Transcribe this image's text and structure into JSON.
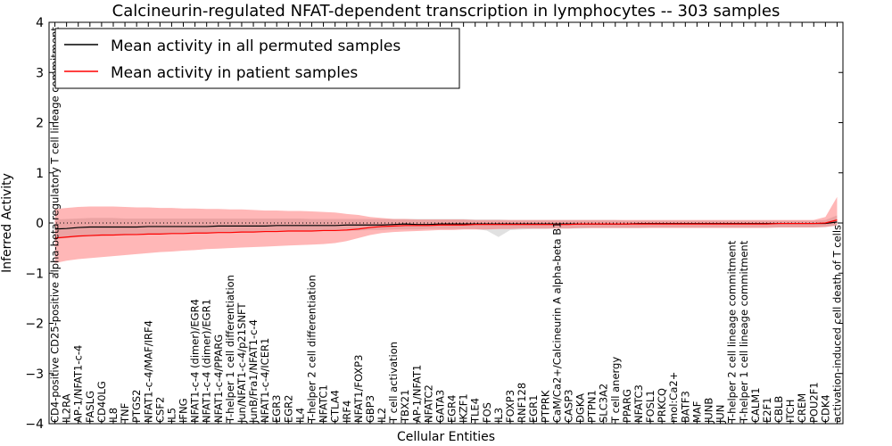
{
  "chart_data": {
    "type": "line",
    "title": "Calcineurin-regulated NFAT-dependent transcription in lymphocytes -- 303 samples",
    "xlabel": "Cellular Entities",
    "ylabel": "Inferred Activity",
    "ylim": [
      -4,
      4
    ],
    "yticks": [
      -4,
      -3,
      -2,
      -1,
      0,
      1,
      2,
      3,
      4
    ],
    "ytick_labels": [
      "−4",
      "−3",
      "−2",
      "−1",
      "0",
      "1",
      "2",
      "3",
      "4"
    ],
    "legend_position": "top-left",
    "categories": [
      "CD4-positive CD25-positive alpha-beta regulatory T cell lineage commitment",
      "IL2RA",
      "AP-1/NFAT1-c-4",
      "FASLG",
      "CD40LG",
      "IL8",
      "TNF",
      "PTGS2",
      "NFAT1-c-4/MAF/IRF4",
      "CSF2",
      "IL5",
      "IFNG",
      "NFAT1-c-4 (dimer)/EGR4",
      "NFAT1-c-4 (dimer)/EGR1",
      "NFAT1-c-4/PPARG",
      "T-helper 1 cell differentiation",
      "Jun/NFAT1-c-4/p21SNFT",
      "JunB/Fra1/NFAT1-c-4",
      "NFAT1-c-4/ICER1",
      "EGR3",
      "EGR2",
      "IL4",
      "T-helper 2 cell differentiation",
      "NFATC1",
      "CTLA4",
      "IRF4",
      "NFAT1/FOXP3",
      "GBP3",
      "IL2",
      "T cell activation",
      "TBX21",
      "AP-1/NFAT1",
      "NFATC2",
      "GATA3",
      "EGR4",
      "IKZF1",
      "TLE4",
      "FOS",
      "IL3",
      "FOXP3",
      "RNF128",
      "EGR1",
      "PTPRK",
      "CaM/Ca2+/Calcineurin A alpha-beta B1",
      "CASP3",
      "DGKA",
      "PTPN1",
      "SLC3A2",
      "T cell anergy",
      "PPARG",
      "NFATC3",
      "FOSL1",
      "PRKCQ",
      "mol:Ca2+",
      "BATF3",
      "MAF",
      "JUNB",
      "JUN",
      "T-helper 2 cell lineage commitment",
      "T-helper 1 cell lineage commitment",
      "CALM1",
      "E2F1",
      "CBLB",
      "ITCH",
      "CREM",
      "POU2F1",
      "CDK4",
      "activation-induced cell death of T cells"
    ],
    "series": [
      {
        "name": "Mean activity in all permuted samples",
        "color": "#000000",
        "values": [
          -0.12,
          -0.11,
          -0.09,
          -0.08,
          -0.08,
          -0.08,
          -0.08,
          -0.08,
          -0.07,
          -0.07,
          -0.07,
          -0.07,
          -0.07,
          -0.07,
          -0.06,
          -0.06,
          -0.06,
          -0.06,
          -0.06,
          -0.05,
          -0.05,
          -0.05,
          -0.05,
          -0.05,
          -0.05,
          -0.04,
          -0.04,
          -0.04,
          -0.04,
          -0.03,
          -0.02,
          -0.03,
          -0.03,
          -0.02,
          -0.02,
          -0.02,
          -0.02,
          -0.02,
          -0.02,
          -0.02,
          -0.02,
          -0.02,
          -0.02,
          -0.02,
          -0.02,
          -0.02,
          -0.02,
          -0.02,
          -0.02,
          -0.02,
          -0.01,
          -0.01,
          -0.01,
          -0.01,
          -0.01,
          -0.01,
          -0.01,
          -0.01,
          -0.01,
          -0.01,
          -0.01,
          -0.01,
          -0.01,
          -0.01,
          -0.01,
          -0.01,
          -0.01,
          0.02
        ],
        "band_upper": [
          0.07,
          0.08,
          0.09,
          0.1,
          0.1,
          0.1,
          0.09,
          0.09,
          0.09,
          0.09,
          0.09,
          0.09,
          0.09,
          0.09,
          0.09,
          0.09,
          0.09,
          0.09,
          0.09,
          0.09,
          0.09,
          0.09,
          0.08,
          0.08,
          0.08,
          0.08,
          0.08,
          0.08,
          0.08,
          0.08,
          0.08,
          0.08,
          0.08,
          0.08,
          0.08,
          0.08,
          0.07,
          0.07,
          0.07,
          0.06,
          0.06,
          0.06,
          0.06,
          0.06,
          0.06,
          0.06,
          0.06,
          0.06,
          0.06,
          0.05,
          0.05,
          0.05,
          0.05,
          0.05,
          0.05,
          0.05,
          0.05,
          0.05,
          0.05,
          0.05,
          0.05,
          0.05,
          0.05,
          0.05,
          0.05,
          0.05,
          0.06,
          0.15
        ],
        "band_lower": [
          -0.32,
          -0.3,
          -0.28,
          -0.27,
          -0.26,
          -0.25,
          -0.25,
          -0.24,
          -0.23,
          -0.22,
          -0.22,
          -0.21,
          -0.21,
          -0.2,
          -0.2,
          -0.19,
          -0.19,
          -0.18,
          -0.18,
          -0.17,
          -0.17,
          -0.16,
          -0.16,
          -0.16,
          -0.15,
          -0.15,
          -0.15,
          -0.14,
          -0.14,
          -0.13,
          -0.13,
          -0.13,
          -0.12,
          -0.12,
          -0.12,
          -0.12,
          -0.12,
          -0.15,
          -0.28,
          -0.14,
          -0.13,
          -0.12,
          -0.12,
          -0.11,
          -0.11,
          -0.11,
          -0.1,
          -0.1,
          -0.1,
          -0.1,
          -0.1,
          -0.09,
          -0.09,
          -0.09,
          -0.09,
          -0.09,
          -0.09,
          -0.09,
          -0.09,
          -0.09,
          -0.09,
          -0.09,
          -0.09,
          -0.09,
          -0.09,
          -0.09,
          -0.08,
          -0.05
        ]
      },
      {
        "name": "Mean activity in patient samples",
        "color": "#ff0000",
        "values": [
          -0.3,
          -0.28,
          -0.26,
          -0.25,
          -0.24,
          -0.24,
          -0.23,
          -0.23,
          -0.22,
          -0.22,
          -0.21,
          -0.21,
          -0.2,
          -0.2,
          -0.19,
          -0.19,
          -0.18,
          -0.18,
          -0.17,
          -0.17,
          -0.16,
          -0.16,
          -0.16,
          -0.15,
          -0.15,
          -0.14,
          -0.12,
          -0.09,
          -0.07,
          -0.06,
          -0.05,
          -0.05,
          -0.05,
          -0.04,
          -0.04,
          -0.04,
          -0.03,
          -0.03,
          -0.03,
          -0.03,
          -0.03,
          -0.03,
          -0.03,
          -0.03,
          -0.03,
          -0.02,
          -0.02,
          -0.02,
          -0.02,
          -0.02,
          -0.02,
          -0.02,
          -0.02,
          -0.02,
          -0.02,
          -0.02,
          -0.02,
          -0.02,
          -0.02,
          -0.02,
          -0.02,
          -0.02,
          -0.01,
          -0.01,
          -0.01,
          -0.01,
          0.0,
          0.06
        ],
        "band_upper": [
          0.28,
          0.3,
          0.32,
          0.33,
          0.33,
          0.33,
          0.32,
          0.31,
          0.31,
          0.3,
          0.3,
          0.29,
          0.29,
          0.28,
          0.28,
          0.27,
          0.27,
          0.26,
          0.25,
          0.25,
          0.24,
          0.24,
          0.23,
          0.22,
          0.21,
          0.18,
          0.16,
          0.12,
          0.1,
          0.08,
          0.08,
          0.07,
          0.07,
          0.07,
          0.07,
          0.07,
          0.06,
          0.06,
          0.06,
          0.06,
          0.06,
          0.06,
          0.06,
          0.06,
          0.06,
          0.06,
          0.06,
          0.06,
          0.06,
          0.06,
          0.06,
          0.06,
          0.06,
          0.06,
          0.06,
          0.06,
          0.06,
          0.06,
          0.06,
          0.06,
          0.06,
          0.06,
          0.06,
          0.06,
          0.06,
          0.06,
          0.12,
          0.52
        ],
        "band_lower": [
          -0.8,
          -0.75,
          -0.72,
          -0.7,
          -0.68,
          -0.66,
          -0.64,
          -0.62,
          -0.6,
          -0.58,
          -0.57,
          -0.55,
          -0.54,
          -0.52,
          -0.51,
          -0.5,
          -0.49,
          -0.48,
          -0.47,
          -0.46,
          -0.45,
          -0.44,
          -0.43,
          -0.42,
          -0.4,
          -0.36,
          -0.3,
          -0.24,
          -0.2,
          -0.18,
          -0.17,
          -0.16,
          -0.15,
          -0.14,
          -0.14,
          -0.13,
          -0.13,
          -0.13,
          -0.12,
          -0.12,
          -0.11,
          -0.11,
          -0.11,
          -0.11,
          -0.11,
          -0.1,
          -0.1,
          -0.1,
          -0.1,
          -0.1,
          -0.1,
          -0.1,
          -0.1,
          -0.1,
          -0.1,
          -0.1,
          -0.1,
          -0.1,
          -0.1,
          -0.1,
          -0.1,
          -0.1,
          -0.09,
          -0.09,
          -0.09,
          -0.09,
          -0.08,
          -0.05
        ]
      }
    ]
  }
}
